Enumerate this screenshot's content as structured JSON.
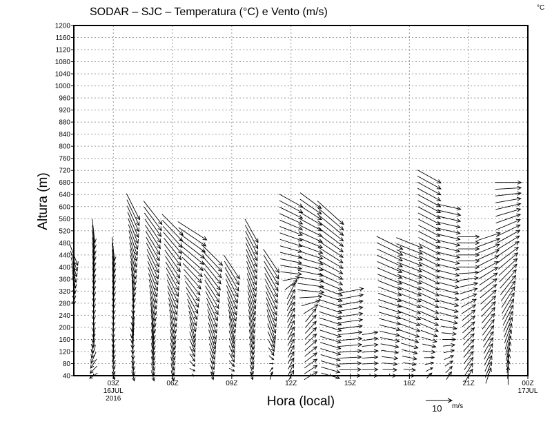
{
  "chart_data": {
    "type": "vector",
    "title": "SODAR – SJC – Temperatura (°C) e Vento (m/s)",
    "corner_unit": "°C",
    "xlabel": "Hora (local)",
    "ylabel": "Altura (m)",
    "xlim": [
      1,
      24
    ],
    "ylim": [
      40,
      1200
    ],
    "yticks": {
      "start": 40,
      "end": 1200,
      "step": 40
    },
    "xticks": [
      {
        "hour": 3,
        "label": "03Z",
        "sub": [
          "16JUL",
          "2016"
        ]
      },
      {
        "hour": 6,
        "label": "06Z",
        "sub": []
      },
      {
        "hour": 9,
        "label": "09Z",
        "sub": []
      },
      {
        "hour": 12,
        "label": "12Z",
        "sub": []
      },
      {
        "hour": 15,
        "label": "15Z",
        "sub": []
      },
      {
        "hour": 18,
        "label": "18Z",
        "sub": []
      },
      {
        "hour": 21,
        "label": "21Z",
        "sub": []
      },
      {
        "hour": 24,
        "label": "00Z",
        "sub": [
          "17JUL"
        ]
      }
    ],
    "grid": true,
    "reference_vector": {
      "value": 10,
      "label": "10",
      "unit": "m/s"
    },
    "level_step_m": 20,
    "columns": [
      {
        "hour": 1,
        "bottom": 300,
        "top": 440,
        "profile": [
          [
            300,
            0,
            -6
          ],
          [
            440,
            3,
            -8
          ]
        ]
      },
      {
        "hour": 2,
        "bottom": 40,
        "top": 520,
        "profile": [
          [
            40,
            -3,
            -2
          ],
          [
            200,
            0,
            -8
          ],
          [
            520,
            1,
            -9
          ]
        ]
      },
      {
        "hour": 3,
        "bottom": 40,
        "top": 470,
        "profile": [
          [
            40,
            1,
            -3
          ],
          [
            200,
            0,
            -8
          ],
          [
            470,
            1,
            -9
          ]
        ]
      },
      {
        "hour": 4,
        "bottom": 40,
        "top": 600,
        "profile": [
          [
            40,
            1,
            -4
          ],
          [
            200,
            -1,
            -8
          ],
          [
            600,
            5,
            -10
          ]
        ]
      },
      {
        "hour": 5,
        "bottom": 40,
        "top": 580,
        "profile": [
          [
            40,
            1,
            -4
          ],
          [
            200,
            1,
            -9
          ],
          [
            580,
            7,
            -9
          ]
        ]
      },
      {
        "hour": 6,
        "bottom": 40,
        "top": 540,
        "profile": [
          [
            40,
            1,
            -4
          ],
          [
            200,
            2,
            -9
          ],
          [
            540,
            8,
            -8
          ]
        ]
      },
      {
        "hour": 7,
        "bottom": 40,
        "top": 520,
        "profile": [
          [
            40,
            2,
            0
          ],
          [
            200,
            2,
            -8
          ],
          [
            520,
            11,
            -7
          ]
        ]
      },
      {
        "hour": 8,
        "bottom": 40,
        "top": 440,
        "profile": [
          [
            40,
            1,
            -3
          ],
          [
            200,
            3,
            -9
          ],
          [
            440,
            8,
            -8
          ]
        ]
      },
      {
        "hour": 9,
        "bottom": 40,
        "top": 400,
        "profile": [
          [
            40,
            2,
            0
          ],
          [
            200,
            2,
            -9
          ],
          [
            400,
            6,
            -9
          ]
        ]
      },
      {
        "hour": 10,
        "bottom": 40,
        "top": 520,
        "profile": [
          [
            40,
            1,
            -3
          ],
          [
            200,
            2,
            -9
          ],
          [
            520,
            5,
            -9
          ]
        ]
      },
      {
        "hour": 11,
        "bottom": 40,
        "top": 420,
        "profile": [
          [
            40,
            1,
            3
          ],
          [
            200,
            3,
            -9
          ],
          [
            420,
            6,
            -9
          ]
        ]
      },
      {
        "hour": 12,
        "bottom": 40,
        "top": 620,
        "profile": [
          [
            40,
            2,
            4
          ],
          [
            320,
            3,
            6
          ],
          [
            380,
            8,
            -1
          ],
          [
            620,
            9,
            -5
          ]
        ]
      },
      {
        "hour": 13,
        "bottom": 40,
        "top": 620,
        "profile": [
          [
            40,
            5,
            3
          ],
          [
            240,
            4,
            5
          ],
          [
            320,
            10,
            -1
          ],
          [
            620,
            8,
            -6
          ]
        ]
      },
      {
        "hour": 14,
        "bottom": 40,
        "top": 580,
        "profile": [
          [
            40,
            7,
            -2
          ],
          [
            300,
            9,
            -3
          ],
          [
            580,
            10,
            -9
          ]
        ]
      },
      {
        "hour": 15,
        "bottom": 40,
        "top": 320,
        "profile": [
          [
            40,
            8,
            0
          ],
          [
            320,
            10,
            2
          ]
        ]
      },
      {
        "hour": 16,
        "bottom": 40,
        "top": 180,
        "profile": [
          [
            40,
            6,
            0
          ],
          [
            180,
            6,
            1
          ]
        ]
      },
      {
        "hour": 17,
        "bottom": 40,
        "top": 480,
        "profile": [
          [
            40,
            5,
            0
          ],
          [
            200,
            8,
            -2
          ],
          [
            480,
            10,
            -5
          ]
        ]
      },
      {
        "hour": 18,
        "bottom": 40,
        "top": 480,
        "profile": [
          [
            40,
            4,
            0
          ],
          [
            200,
            8,
            -3
          ],
          [
            480,
            10,
            -4
          ]
        ]
      },
      {
        "hour": 19,
        "bottom": 40,
        "top": 700,
        "profile": [
          [
            40,
            2,
            2
          ],
          [
            200,
            7,
            -3
          ],
          [
            700,
            9,
            -5
          ]
        ]
      },
      {
        "hour": 20,
        "bottom": 40,
        "top": 600,
        "profile": [
          [
            40,
            2,
            3
          ],
          [
            240,
            7,
            -2
          ],
          [
            600,
            9,
            -2
          ]
        ]
      },
      {
        "hour": 21,
        "bottom": 40,
        "top": 510,
        "profile": [
          [
            40,
            3,
            5
          ],
          [
            240,
            5,
            4
          ],
          [
            400,
            8,
            0
          ],
          [
            510,
            8,
            0
          ]
        ]
      },
      {
        "hour": 22,
        "bottom": 40,
        "top": 500,
        "profile": [
          [
            40,
            2,
            6
          ],
          [
            240,
            5,
            6
          ],
          [
            500,
            9,
            3
          ]
        ]
      },
      {
        "hour": 23,
        "bottom": 40,
        "top": 680,
        "profile": [
          [
            40,
            0,
            7
          ],
          [
            300,
            5,
            8
          ],
          [
            500,
            9,
            5
          ],
          [
            680,
            10,
            0
          ]
        ]
      }
    ]
  }
}
